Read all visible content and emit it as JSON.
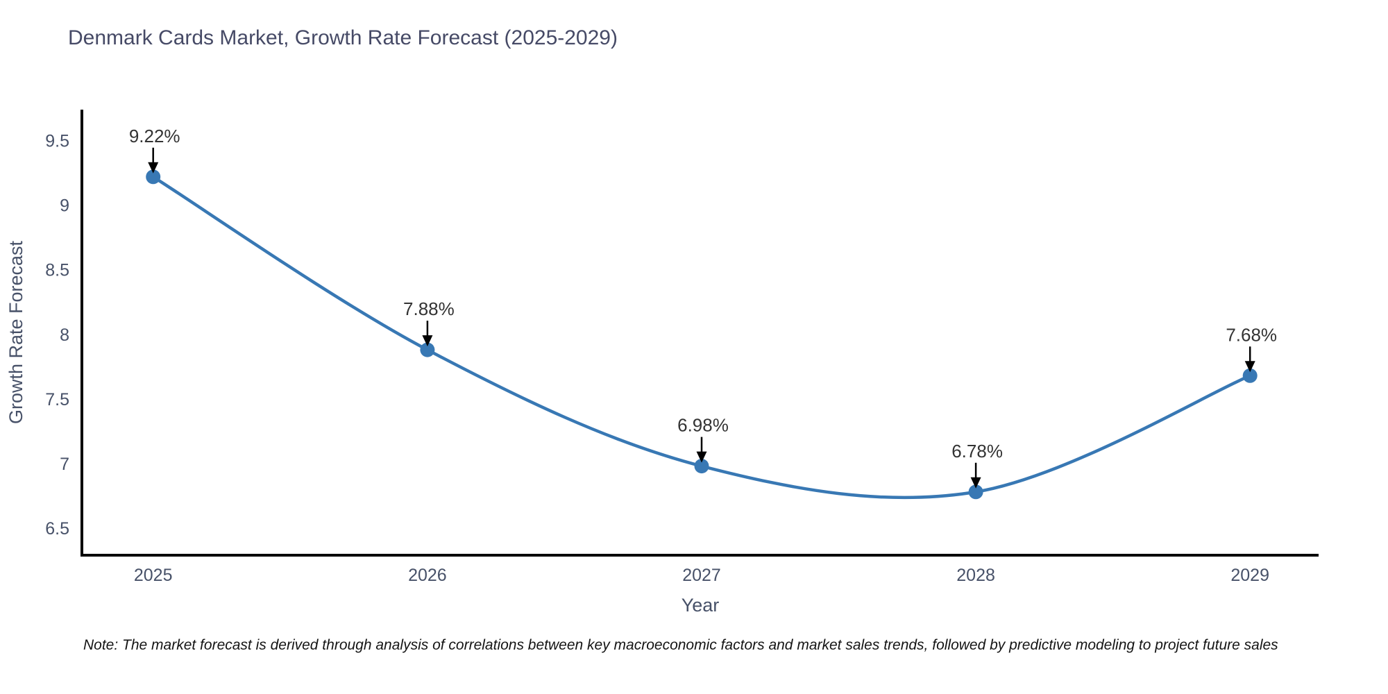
{
  "page": {
    "background": "#ffffff"
  },
  "chart_data": {
    "type": "line",
    "title": "Denmark Cards Market, Growth Rate Forecast (2025-2029)",
    "xlabel": "Year",
    "ylabel": "Growth Rate Forecast",
    "x": [
      2025,
      2026,
      2027,
      2028,
      2029
    ],
    "values": [
      9.22,
      7.88,
      6.98,
      6.78,
      7.68
    ],
    "point_labels": [
      "9.22%",
      "7.88%",
      "6.98%",
      "6.78%",
      "7.68%"
    ],
    "x_ticks": [
      "2025",
      "2026",
      "2027",
      "2028",
      "2029"
    ],
    "y_ticks": [
      "6.5",
      "7",
      "7.5",
      "8",
      "8.5",
      "9",
      "9.5"
    ],
    "xlim": [
      2024.74,
      2029.25
    ],
    "ylim": [
      6.29,
      9.74
    ],
    "grid": false,
    "legend": "none",
    "line_shape": "spline",
    "colors": {
      "line": "#3878b4",
      "marker": "#3878b4",
      "axis_line": "#000000",
      "title_text": "#464a66",
      "tick_text": "#475168",
      "axis_title_text": "#475168",
      "annotation_text": "#333333",
      "arrow": "#000000"
    }
  },
  "note": {
    "text": "Note: The market forecast is derived through analysis of correlations between key macroeconomic factors and market sales trends, followed by predictive modeling to project future sales"
  }
}
